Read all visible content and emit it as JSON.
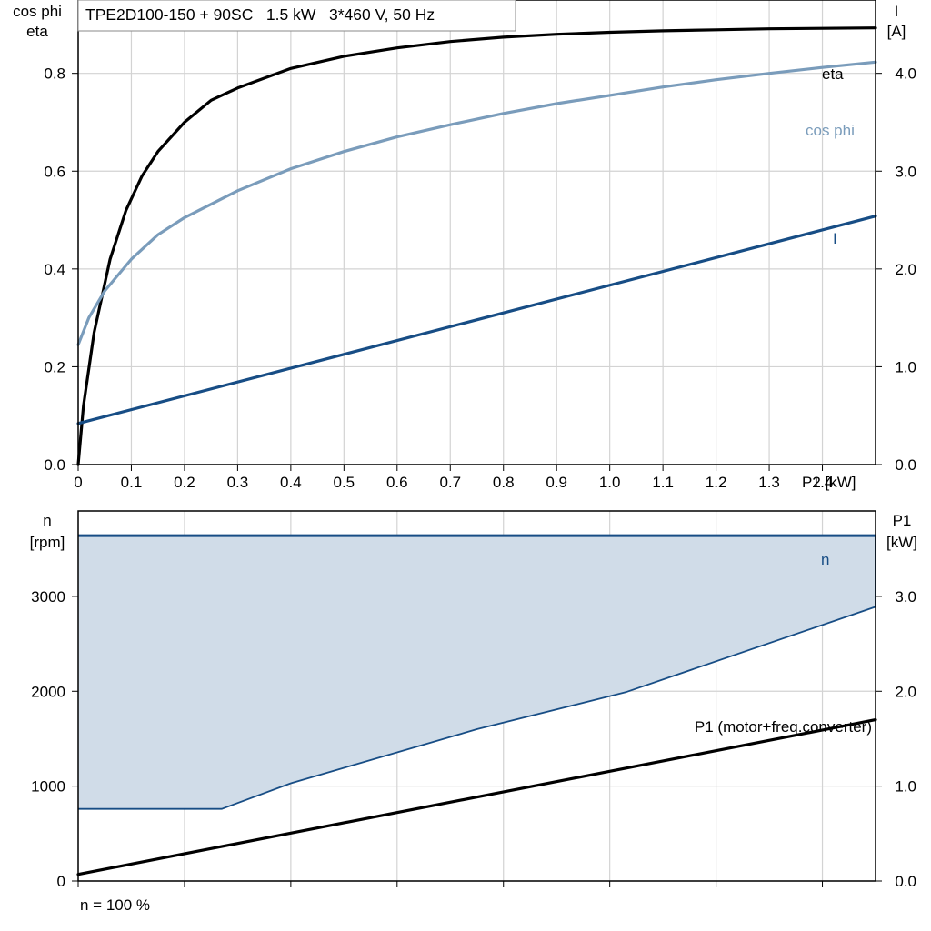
{
  "colors": {
    "grid": "#d3d3d3",
    "axis": "#000000",
    "eta": "#000000",
    "cos_phi": "#7a9cbb",
    "current": "#174d85",
    "speed_line": "#174d85",
    "speed_fill": "#d0dce8",
    "p1": "#000000"
  },
  "chart_data": [
    {
      "type": "line",
      "title": "TPE2D100-150 + 90SC   1.5 kW   3*460 V, 50 Hz",
      "xlabel": "P2 [kW]",
      "x_unit_label": "P2 [kW]",
      "xlim": [
        0,
        1.5
      ],
      "x_ticks": [
        0,
        0.1,
        0.2,
        0.3,
        0.4,
        0.5,
        0.6,
        0.7,
        0.8,
        0.9,
        1.0,
        1.1,
        1.2,
        1.3,
        1.4
      ],
      "x_tick_labels": [
        "0",
        "0.1",
        "0.2",
        "0.3",
        "0.4",
        "0.5",
        "0.6",
        "0.7",
        "0.8",
        "0.9",
        "1.0",
        "1.1",
        "1.2",
        "1.3",
        "1.4"
      ],
      "ylabel_left_1": "cos phi",
      "ylabel_left_2": "eta",
      "ylim_left": [
        0,
        0.95
      ],
      "y_ticks_left": [
        0,
        0.2,
        0.4,
        0.6,
        0.8
      ],
      "y_tick_labels_left": [
        "0.0",
        "0.2",
        "0.4",
        "0.6",
        "0.8"
      ],
      "ylabel_right_1": "I",
      "ylabel_right_2": "[A]",
      "ylim_right": [
        0,
        4.75
      ],
      "y_ticks_right": [
        0,
        1,
        2,
        3,
        4
      ],
      "y_tick_labels_right": [
        "0.0",
        "1.0",
        "2.0",
        "3.0",
        "4.0"
      ],
      "grid": true,
      "series": [
        {
          "name": "eta",
          "axis": "left",
          "x": [
            0,
            0.01,
            0.03,
            0.06,
            0.09,
            0.12,
            0.15,
            0.2,
            0.25,
            0.3,
            0.4,
            0.5,
            0.6,
            0.7,
            0.8,
            0.9,
            1.0,
            1.1,
            1.2,
            1.3,
            1.4,
            1.5
          ],
          "values": [
            0,
            0.12,
            0.27,
            0.42,
            0.52,
            0.59,
            0.64,
            0.7,
            0.745,
            0.77,
            0.81,
            0.835,
            0.852,
            0.865,
            0.874,
            0.88,
            0.884,
            0.887,
            0.889,
            0.891,
            0.892,
            0.893
          ]
        },
        {
          "name": "cos phi",
          "axis": "left",
          "x": [
            0,
            0.02,
            0.05,
            0.1,
            0.15,
            0.2,
            0.3,
            0.4,
            0.5,
            0.6,
            0.7,
            0.8,
            0.9,
            1.0,
            1.1,
            1.2,
            1.3,
            1.4,
            1.5
          ],
          "values": [
            0.245,
            0.3,
            0.355,
            0.42,
            0.47,
            0.505,
            0.56,
            0.605,
            0.64,
            0.67,
            0.695,
            0.718,
            0.738,
            0.755,
            0.772,
            0.787,
            0.8,
            0.812,
            0.823
          ]
        },
        {
          "name": "I",
          "axis": "right",
          "x": [
            0,
            1.5
          ],
          "values": [
            0.42,
            2.54
          ]
        }
      ]
    },
    {
      "type": "area",
      "xlim": [
        0,
        1.5
      ],
      "x_ticks": [
        0,
        0.2,
        0.4,
        0.6,
        0.8,
        1.0,
        1.2,
        1.4
      ],
      "ylabel_left_1": "n",
      "ylabel_left_2": "[rpm]",
      "ylim_left": [
        0,
        3900
      ],
      "y_ticks_left": [
        0,
        1000,
        2000,
        3000
      ],
      "y_tick_labels_left": [
        "0",
        "1000",
        "2000",
        "3000"
      ],
      "ylabel_right_1": "P1",
      "ylabel_right_2": "[kW]",
      "ylim_right": [
        0,
        3.9
      ],
      "y_ticks_right": [
        0,
        1,
        2,
        3
      ],
      "y_tick_labels_right": [
        "0.0",
        "1.0",
        "2.0",
        "3.0"
      ],
      "grid": true,
      "series": [
        {
          "name": "n",
          "axis": "left",
          "max_speed": {
            "x": [
              0,
              1.5
            ],
            "values": [
              3640,
              3640
            ]
          },
          "min_speed": {
            "x": [
              0,
              0.27,
              0.4,
              0.75,
              1.03,
              1.5
            ],
            "values": [
              760,
              760,
              1030,
              1600,
              1990,
              2890
            ]
          }
        },
        {
          "name": "P1 (motor+freq.converter)",
          "axis": "right",
          "x": [
            0,
            1.5
          ],
          "values": [
            0.07,
            1.7
          ]
        }
      ],
      "footer": "n = 100 %"
    }
  ]
}
